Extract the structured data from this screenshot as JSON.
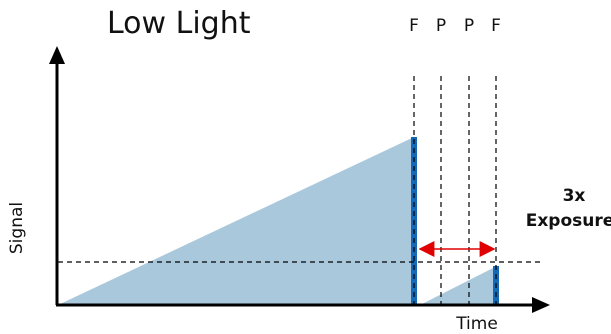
{
  "title": "Low Light",
  "axes": {
    "y_label": "Signal",
    "x_label": "Time"
  },
  "frame_markers": [
    "F",
    "P",
    "P",
    "F"
  ],
  "exposure": {
    "line1": "3x",
    "line2": "Exposure"
  },
  "colors": {
    "ramp_fill": "#a9c8dc",
    "readout_bar": "#1468b8",
    "axis": "#000000",
    "threshold": "#000000",
    "arrow": "#e00000"
  }
}
